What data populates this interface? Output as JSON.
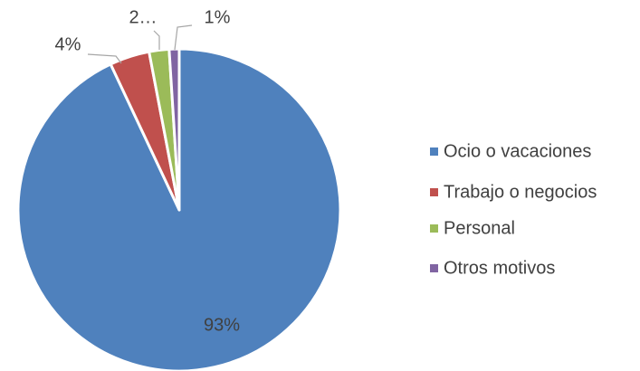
{
  "chart_data": {
    "type": "pie",
    "categories": [
      "Ocio o vacaciones",
      "Trabajo o negocios",
      "Personal",
      "Otros motivos"
    ],
    "values": [
      93,
      4,
      2,
      1
    ],
    "value_labels": [
      "93%",
      "4%",
      "2…",
      "1%"
    ],
    "colors": [
      "#4f81bd",
      "#c0504d",
      "#9bbb59",
      "#8064a2"
    ],
    "legend": "right"
  }
}
